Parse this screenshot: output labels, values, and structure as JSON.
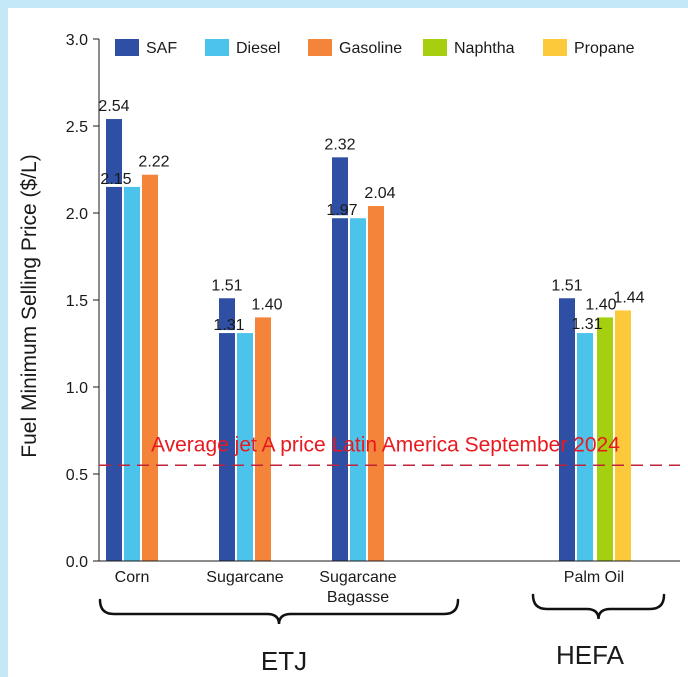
{
  "chart_data": {
    "type": "bar",
    "ylabel": "Fuel Minimum Selling Price ($/L)",
    "ylim": [
      0,
      3.0
    ],
    "yticks": [
      "0.0",
      "0.5",
      "1.0",
      "1.5",
      "2.0",
      "2.5",
      "3.0"
    ],
    "legend": {
      "placement": "top",
      "entries": [
        {
          "name": "SAF",
          "color": "#2e4fa3"
        },
        {
          "name": "Diesel",
          "color": "#4cc3ea"
        },
        {
          "name": "Gasoline",
          "color": "#f5843b"
        },
        {
          "name": "Naphtha",
          "color": "#a6cf0f"
        },
        {
          "name": "Propane",
          "color": "#fcc93a"
        }
      ]
    },
    "categories": [
      {
        "name": "Corn",
        "sub": "",
        "bars": [
          {
            "series": "SAF",
            "value": 2.54,
            "label": "2.54",
            "low": 2.15,
            "low_label": "2.15"
          },
          {
            "series": "Diesel",
            "value": 2.15,
            "label": ""
          },
          {
            "series": "Gasoline",
            "value": 2.22,
            "label": "2.22"
          }
        ]
      },
      {
        "name": "Sugarcane",
        "sub": "",
        "bars": [
          {
            "series": "SAF",
            "value": 1.51,
            "label": "1.51",
            "low": 1.31,
            "low_label": "1.31"
          },
          {
            "series": "Diesel",
            "value": 1.31,
            "label": ""
          },
          {
            "series": "Gasoline",
            "value": 1.4,
            "label": "1.40"
          }
        ]
      },
      {
        "name": "Sugarcane",
        "sub": "Bagasse",
        "bars": [
          {
            "series": "SAF",
            "value": 2.32,
            "label": "2.32",
            "low": 1.97,
            "low_label": "1.97"
          },
          {
            "series": "Diesel",
            "value": 1.97,
            "label": ""
          },
          {
            "series": "Gasoline",
            "value": 2.04,
            "label": "2.04"
          }
        ]
      },
      {
        "name": "Palm Oil",
        "sub": "",
        "bars": [
          {
            "series": "SAF",
            "value": 1.51,
            "label": "1.51"
          },
          {
            "series": "Diesel",
            "value": 1.31,
            "label": "1.31"
          },
          {
            "series": "Naphtha",
            "value": 1.4,
            "label": "1.40"
          },
          {
            "series": "Propane",
            "value": 1.44,
            "label": "1.44"
          }
        ]
      }
    ],
    "groups": [
      {
        "name": "ETJ",
        "categories": [
          "Corn",
          "Sugarcane",
          "Sugarcane Bagasse"
        ]
      },
      {
        "name": "HEFA",
        "categories": [
          "Palm Oil"
        ]
      }
    ],
    "reference_line": {
      "label": "Average jet A price Latin America September 2024",
      "value": 0.55,
      "color": "#c0223a",
      "style": "dashed"
    }
  }
}
